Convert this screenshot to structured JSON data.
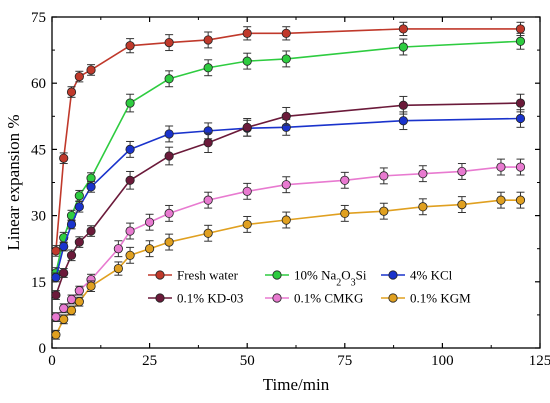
{
  "chart_data": {
    "type": "line",
    "xlabel": "Time/min",
    "ylabel": "Linear expansion %",
    "xlim": [
      0,
      125
    ],
    "ylim": [
      0,
      75
    ],
    "xticks": [
      0,
      25,
      50,
      75,
      100,
      125
    ],
    "yticks": [
      0,
      15,
      30,
      45,
      60,
      75
    ],
    "grid": false,
    "legend_position": "bottom-center",
    "series": [
      {
        "name": "Fresh water",
        "color": "#c0392b",
        "x": [
          1,
          3,
          5,
          7,
          10,
          20,
          30,
          40,
          50,
          60,
          90,
          120
        ],
        "y": [
          22,
          43,
          58,
          61.5,
          63,
          68.5,
          69.2,
          69.8,
          71.3,
          71.3,
          72.3,
          72.3
        ],
        "err": [
          1.2,
          1.2,
          1.2,
          1.2,
          1.2,
          1.6,
          1.8,
          1.8,
          1.5,
          1.5,
          1.5,
          1.5
        ]
      },
      {
        "name": "10% Na2O3Si",
        "name_main": "10% Na",
        "name_sub1": "2",
        "name_mid": "O",
        "name_sub2": "3",
        "name_end": "Si",
        "color": "#2ecc40",
        "x": [
          1,
          3,
          5,
          7,
          10,
          20,
          30,
          40,
          50,
          60,
          90,
          120
        ],
        "y": [
          17,
          25,
          30,
          34.5,
          38.5,
          55.5,
          61,
          63.5,
          65,
          65.5,
          68.2,
          69.5
        ],
        "err": [
          1.2,
          1.2,
          1.2,
          1.2,
          1.2,
          2.0,
          1.8,
          1.8,
          1.8,
          1.8,
          1.8,
          1.8
        ]
      },
      {
        "name": "4% KCl",
        "color": "#1a33cc",
        "x": [
          1,
          3,
          5,
          7,
          10,
          20,
          30,
          40,
          50,
          60,
          90,
          120
        ],
        "y": [
          16,
          23,
          28,
          32,
          36.5,
          45,
          48.5,
          49.2,
          49.8,
          50,
          51.5,
          52
        ],
        "err": [
          1.0,
          1.0,
          1.0,
          1.2,
          1.2,
          1.8,
          1.8,
          1.8,
          1.8,
          1.8,
          2.0,
          2.0
        ]
      },
      {
        "name": "0.1% KD-03",
        "color": "#6b1a3a",
        "x": [
          1,
          3,
          5,
          7,
          10,
          20,
          30,
          40,
          50,
          60,
          90,
          120
        ],
        "y": [
          12,
          17,
          21,
          24,
          26.5,
          38,
          43.5,
          46.5,
          50,
          52.5,
          55,
          55.5
        ],
        "err": [
          1.0,
          1.0,
          1.2,
          1.2,
          1.2,
          2.0,
          2.0,
          2.2,
          2.0,
          2.0,
          2.0,
          2.0
        ]
      },
      {
        "name": "0.1% CMKG",
        "color": "#e87ad0",
        "x": [
          1,
          3,
          5,
          7,
          10,
          17,
          20,
          25,
          30,
          40,
          50,
          60,
          75,
          85,
          95,
          105,
          115,
          120
        ],
        "y": [
          7,
          9,
          11,
          13,
          15.5,
          22.5,
          26.5,
          28.5,
          30.5,
          33.5,
          35.5,
          37,
          38,
          39,
          39.5,
          40,
          41,
          41
        ],
        "err": [
          1.0,
          1.0,
          1.0,
          1.0,
          1.2,
          1.8,
          1.8,
          1.8,
          1.8,
          1.8,
          1.8,
          1.8,
          1.8,
          1.8,
          1.8,
          1.8,
          1.8,
          1.8
        ]
      },
      {
        "name": "0.1% KGM",
        "color": "#e0a020",
        "x": [
          1,
          3,
          5,
          7,
          10,
          17,
          20,
          25,
          30,
          40,
          50,
          60,
          75,
          85,
          95,
          105,
          115,
          120
        ],
        "y": [
          3,
          6.5,
          8.5,
          10.5,
          14,
          18,
          21,
          22.5,
          24,
          26,
          28,
          29,
          30.5,
          31,
          32,
          32.5,
          33.5,
          33.5
        ],
        "err": [
          1.0,
          1.0,
          1.0,
          1.0,
          1.2,
          1.5,
          1.8,
          1.8,
          1.8,
          1.8,
          1.8,
          1.8,
          1.8,
          1.8,
          1.8,
          1.8,
          1.8,
          1.8
        ]
      }
    ]
  }
}
